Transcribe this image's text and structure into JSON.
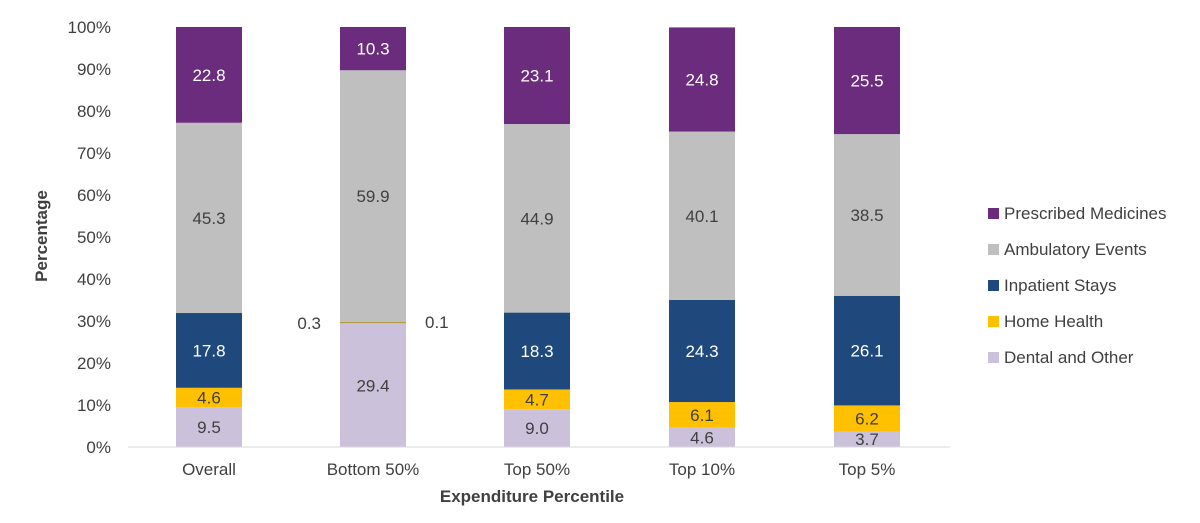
{
  "chart_data": {
    "type": "bar",
    "stacked": true,
    "title": "",
    "xlabel": "Expenditure Percentile",
    "ylabel": "Percentage",
    "ylim": [
      0,
      100
    ],
    "yticks": [
      "0%",
      "10%",
      "20%",
      "30%",
      "40%",
      "50%",
      "60%",
      "70%",
      "80%",
      "90%",
      "100%"
    ],
    "categories": [
      "Overall",
      "Bottom 50%",
      "Top 50%",
      "Top 10%",
      "Top 5%"
    ],
    "grid": false,
    "legend_position": "right",
    "series": [
      {
        "name": "Dental and Other",
        "color": "#ccc1da",
        "label_color": "#404040",
        "values": [
          9.5,
          29.4,
          9.0,
          4.6,
          3.7
        ]
      },
      {
        "name": "Home Health",
        "color": "#ffc000",
        "label_color": "#404040",
        "values": [
          4.6,
          0.3,
          4.7,
          6.1,
          6.2
        ]
      },
      {
        "name": "Inpatient Stays",
        "color": "#1f497d",
        "label_color": "#ffffff",
        "values": [
          17.8,
          0.1,
          18.3,
          24.3,
          26.1
        ]
      },
      {
        "name": "Ambulatory Events",
        "color": "#bfbfbf",
        "label_color": "#404040",
        "values": [
          45.3,
          59.9,
          44.9,
          40.1,
          38.5
        ]
      },
      {
        "name": "Prescribed Medicines",
        "color": "#6b2c7e",
        "label_color": "#ffffff",
        "values": [
          22.8,
          10.3,
          23.1,
          24.8,
          25.5
        ]
      }
    ],
    "legend_order": [
      "Prescribed Medicines",
      "Ambulatory Events",
      "Inpatient Stays",
      "Home Health",
      "Dental and Other"
    ],
    "external_labels": [
      {
        "category": "Bottom 50%",
        "series": "Home Health",
        "text": "0.3",
        "side": "left"
      },
      {
        "category": "Bottom 50%",
        "series": "Inpatient Stays",
        "text": "0.1",
        "side": "right"
      }
    ]
  }
}
